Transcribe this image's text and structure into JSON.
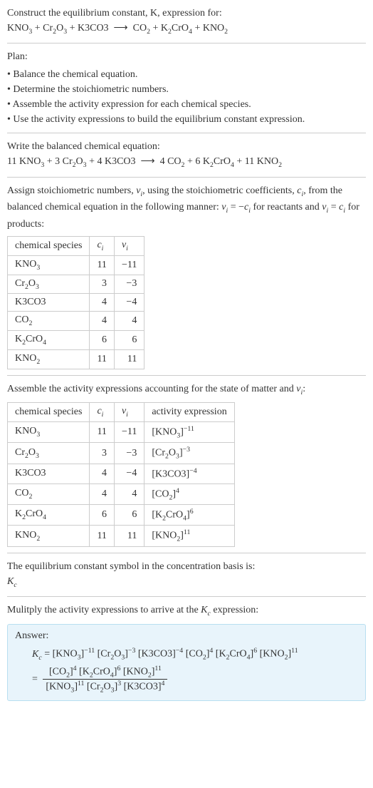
{
  "intro": {
    "l1": "Construct the equilibrium constant, K, expression for:",
    "eq": "KNO₃ + Cr₂O₃ + K3CO3 ⟶ CO₂ + K₂CrO₄ + KNO₂"
  },
  "plan": {
    "title": "Plan:",
    "items": [
      "Balance the chemical equation.",
      "Determine the stoichiometric numbers.",
      "Assemble the activity expression for each chemical species.",
      "Use the activity expressions to build the equilibrium constant expression."
    ]
  },
  "balanced": {
    "title": "Write the balanced chemical equation:",
    "eq": "11 KNO₃ + 3 Cr₂O₃ + 4 K3CO3 ⟶ 4 CO₂ + 6 K₂CrO₄ + 11 KNO₂"
  },
  "assign": {
    "text": "Assign stoichiometric numbers, νᵢ, using the stoichiometric coefficients, cᵢ, from the balanced chemical equation in the following manner: νᵢ = −cᵢ for reactants and νᵢ = cᵢ for products:"
  },
  "table1": {
    "headers": [
      "chemical species",
      "cᵢ",
      "νᵢ"
    ],
    "rows": [
      [
        "KNO₃",
        "11",
        "−11"
      ],
      [
        "Cr₂O₃",
        "3",
        "−3"
      ],
      [
        "K3CO3",
        "4",
        "−4"
      ],
      [
        "CO₂",
        "4",
        "4"
      ],
      [
        "K₂CrO₄",
        "6",
        "6"
      ],
      [
        "KNO₂",
        "11",
        "11"
      ]
    ]
  },
  "assemble": {
    "text": "Assemble the activity expressions accounting for the state of matter and νᵢ:"
  },
  "table2": {
    "headers": [
      "chemical species",
      "cᵢ",
      "νᵢ",
      "activity expression"
    ],
    "rows": [
      [
        "KNO₃",
        "11",
        "−11",
        "[KNO₃]⁻¹¹"
      ],
      [
        "Cr₂O₃",
        "3",
        "−3",
        "[Cr₂O₃]⁻³"
      ],
      [
        "K3CO3",
        "4",
        "−4",
        "[K3CO3]⁻⁴"
      ],
      [
        "CO₂",
        "4",
        "4",
        "[CO₂]⁴"
      ],
      [
        "K₂CrO₄",
        "6",
        "6",
        "[K₂CrO₄]⁶"
      ],
      [
        "KNO₂",
        "11",
        "11",
        "[KNO₂]¹¹"
      ]
    ]
  },
  "eqsymbol": {
    "l1": "The equilibrium constant symbol in the concentration basis is:",
    "l2": "K"
  },
  "multiply": {
    "text": "Mulitply the activity expressions to arrive at the Kc expression:"
  },
  "answer": {
    "label": "Answer:"
  }
}
